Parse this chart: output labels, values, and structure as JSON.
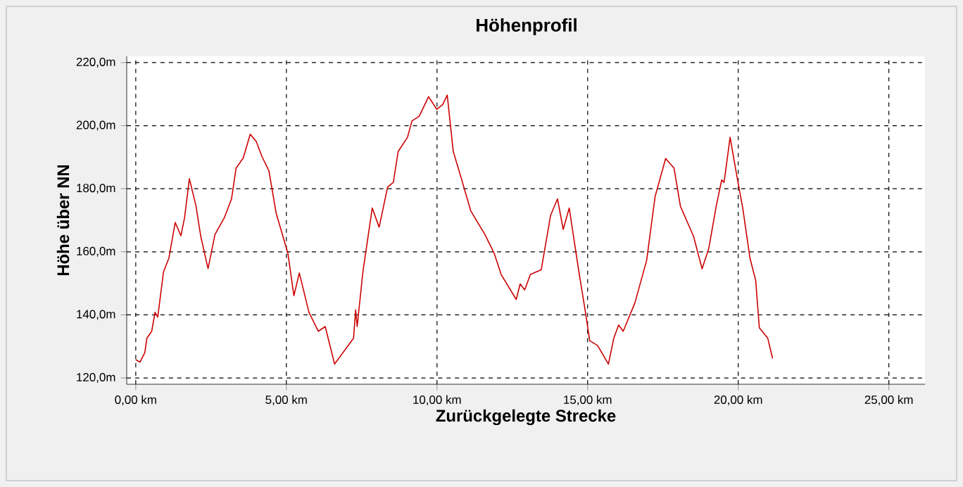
{
  "chart_data": {
    "type": "line",
    "title": "Höhenprofil",
    "xlabel": "Zurückgelegte Strecke",
    "ylabel": "Höhe über NN",
    "xlim": [
      -0.3,
      26.2
    ],
    "ylim": [
      118,
      222
    ],
    "xticks": [
      {
        "value": 0,
        "label": "0,00 km"
      },
      {
        "value": 5,
        "label": "5,00 km"
      },
      {
        "value": 10,
        "label": "10,00 km"
      },
      {
        "value": 15,
        "label": "15,00 km"
      },
      {
        "value": 20,
        "label": "20,00 km"
      },
      {
        "value": 25,
        "label": "25,00 km"
      }
    ],
    "yticks": [
      {
        "value": 120,
        "label": "120,0m"
      },
      {
        "value": 140,
        "label": "140,0m"
      },
      {
        "value": 160,
        "label": "160,0m"
      },
      {
        "value": 180,
        "label": "180,0m"
      },
      {
        "value": 200,
        "label": "200,0m"
      },
      {
        "value": 220,
        "label": "220,0m"
      }
    ],
    "grid": true,
    "legend": false,
    "marker": "none",
    "line_style": "solid",
    "series": [
      {
        "color": "#cc0000",
        "x": [
          0,
          0.14,
          0.3,
          0.37,
          0.53,
          0.64,
          0.73,
          0.92,
          1.1,
          1.31,
          1.5,
          1.62,
          1.78,
          2.0,
          2.16,
          2.4,
          2.63,
          2.94,
          3.18,
          3.33,
          3.57,
          3.8,
          4.0,
          4.19,
          4.42,
          4.66,
          5.05,
          5.25,
          5.43,
          5.75,
          6.06,
          6.29,
          6.6,
          7.0,
          7.23,
          7.3,
          7.35,
          7.54,
          7.85,
          8.08,
          8.36,
          8.55,
          8.71,
          9.02,
          9.17,
          9.41,
          9.72,
          9.99,
          10.19,
          10.34,
          10.54,
          10.8,
          11.12,
          11.59,
          11.9,
          12.13,
          12.63,
          12.76,
          12.91,
          13.1,
          13.46,
          13.77,
          14.0,
          14.19,
          14.39,
          14.7,
          14.94,
          15.07,
          15.33,
          15.69,
          15.87,
          16.03,
          16.18,
          16.57,
          16.96,
          17.24,
          17.59,
          17.87,
          18.08,
          18.52,
          18.8,
          19.02,
          19.27,
          19.45,
          19.53,
          19.73,
          19.95,
          20.15,
          20.39,
          20.58,
          20.7,
          20.98,
          21.14
        ],
        "values": [
          125.8,
          125,
          128,
          132.6,
          134.8,
          140.8,
          139.3,
          153.6,
          158,
          169.3,
          165.1,
          170.8,
          183.2,
          174.5,
          164.8,
          154.7,
          165.5,
          170.8,
          176.8,
          186.5,
          189.8,
          197.3,
          195,
          190.2,
          185.7,
          172.3,
          159.5,
          146.1,
          153.3,
          140.8,
          134.8,
          136.3,
          124.4,
          129.6,
          132.6,
          141.6,
          136.3,
          153.6,
          173.9,
          167.8,
          180.5,
          182,
          191.8,
          196.3,
          201.5,
          203,
          209.2,
          205.2,
          206.7,
          209.7,
          191.8,
          183.5,
          173,
          165.5,
          159.5,
          152.8,
          144.9,
          149.8,
          147.9,
          152.8,
          154.3,
          171.5,
          176.8,
          167.1,
          173.9,
          154.3,
          140.1,
          131.8,
          130.3,
          124.4,
          132.6,
          136.8,
          134.8,
          143.8,
          157.3,
          177.5,
          189.6,
          186.5,
          174.5,
          164.8,
          154.6,
          161,
          174.5,
          182.8,
          182,
          196.3,
          184.3,
          173.9,
          158,
          150.9,
          135.9,
          132.6,
          126.2
        ]
      }
    ]
  }
}
